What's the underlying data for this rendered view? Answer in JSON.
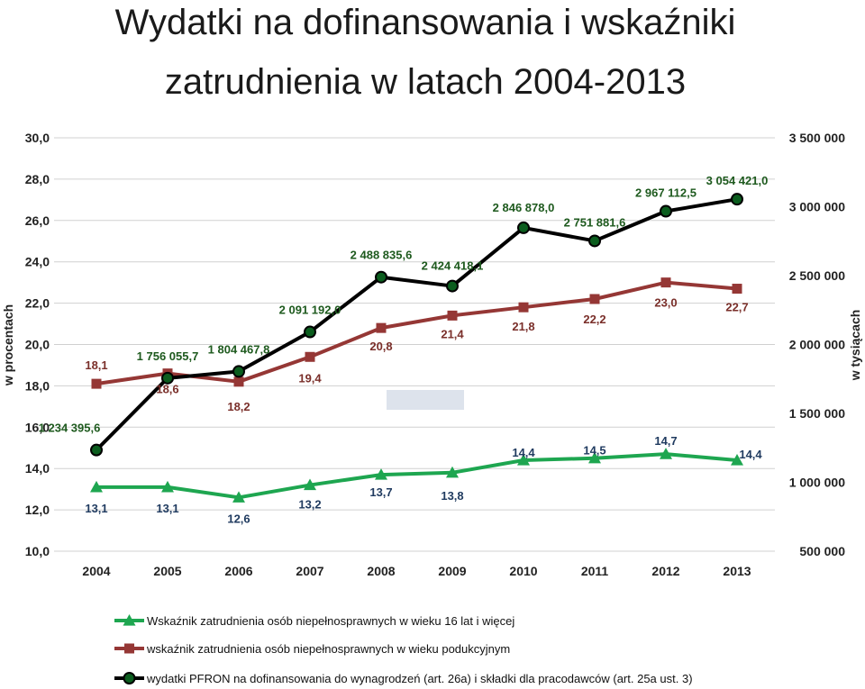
{
  "chart_data": {
    "type": "line",
    "title_lines": [
      "Wydatki na dofinansowania i wskaźniki",
      "zatrudnienia w latach 2004-2013"
    ],
    "ylabel_left": "w procentach",
    "ylabel_right": "w tysiącach",
    "categories": [
      "2004",
      "2005",
      "2006",
      "2007",
      "2008",
      "2009",
      "2010",
      "2011",
      "2012",
      "2013"
    ],
    "y_left": {
      "min": 10,
      "max": 30,
      "ticks": [
        10,
        12,
        14,
        16,
        18,
        20,
        22,
        24,
        26,
        28,
        30
      ],
      "tick_labels": [
        "10,0",
        "12,0",
        "14,0",
        "16,0",
        "18,0",
        "20,0",
        "22,0",
        "24,0",
        "26,0",
        "28,0",
        "30,0"
      ]
    },
    "y_right": {
      "min": 500000,
      "max": 3500000,
      "ticks": [
        500000,
        1000000,
        1500000,
        2000000,
        2500000,
        3000000,
        3500000
      ],
      "tick_labels": [
        "500 000",
        "1 000 000",
        "1 500 000",
        "2 000 000",
        "2 500 000",
        "3 000 000",
        "3 500 000"
      ]
    },
    "grid": true,
    "legend_position": "bottom",
    "series": [
      {
        "name": "Wskaźnik zatrudnienia osób niepełnosprawnych w wieku 16 lat i więcej",
        "axis": "left",
        "color": "#1ea650",
        "marker": "triangle",
        "values": [
          13.1,
          13.1,
          12.6,
          13.2,
          13.7,
          13.8,
          14.4,
          14.5,
          14.7,
          14.4
        ],
        "labels": [
          "13,1",
          "13,1",
          "12,6",
          "13,2",
          "13,7",
          "13,8",
          "14,4",
          "14,5",
          "14,7",
          "14,4"
        ]
      },
      {
        "name": "wskaźnik zatrudnienia osób niepełnosprawnych w wieku podukcyjnym",
        "axis": "left",
        "color": "#953735",
        "marker": "square",
        "values": [
          18.1,
          18.6,
          18.2,
          19.4,
          20.8,
          21.4,
          21.8,
          22.2,
          23.0,
          22.7
        ],
        "labels": [
          "18,1",
          "18,6",
          "18,2",
          "19,4",
          "20,8",
          "21,4",
          "21,8",
          "22,2",
          "23,0",
          "22,7"
        ]
      },
      {
        "name": "wydatki PFRON na dofinansowania do wynagrodzeń (art. 26a) i składki dla pracodawców (art. 25a ust. 3)",
        "axis": "right",
        "color": "#000000",
        "marker": "circle",
        "marker_fill": "#0b5d1e",
        "values": [
          1234395.6,
          1756055.7,
          1804467.8,
          2091192.0,
          2488835.6,
          2424418.1,
          2846878.0,
          2751881.6,
          2967112.5,
          3054421.0
        ],
        "labels": [
          "1 234 395,6",
          "1 756 055,7",
          "1 804 467,8",
          "2 091 192,0",
          "2 488 835,6",
          "2 424 418,1",
          "2 846 878,0",
          "2 751 881,6",
          "2 967 112,5",
          "3 054 421,0"
        ]
      }
    ]
  }
}
